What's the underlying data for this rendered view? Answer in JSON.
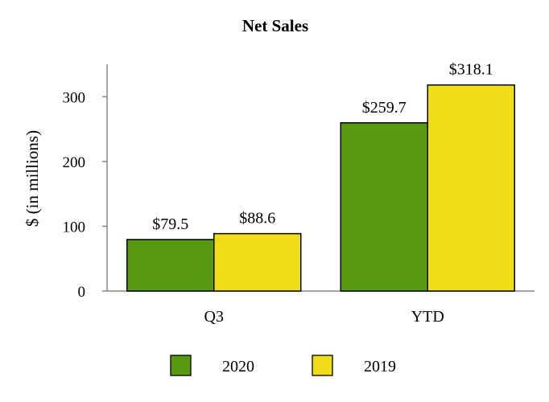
{
  "chart_data": {
    "type": "bar",
    "title": "Net Sales",
    "xlabel": "",
    "ylabel": "$ (in millions)",
    "categories": [
      "Q3",
      "YTD"
    ],
    "series": [
      {
        "name": "2020",
        "values": [
          79.5,
          259.7
        ],
        "labels": [
          "$79.5",
          "$259.7"
        ],
        "color": "#5a9a12"
      },
      {
        "name": "2019",
        "values": [
          88.6,
          318.1
        ],
        "labels": [
          "$88.6",
          "$318.1"
        ],
        "color": "#eedd18"
      }
    ],
    "ylim": [
      0,
      350
    ],
    "yticks": [
      0,
      100,
      200,
      300
    ],
    "grid": false,
    "legend": "bottom"
  }
}
